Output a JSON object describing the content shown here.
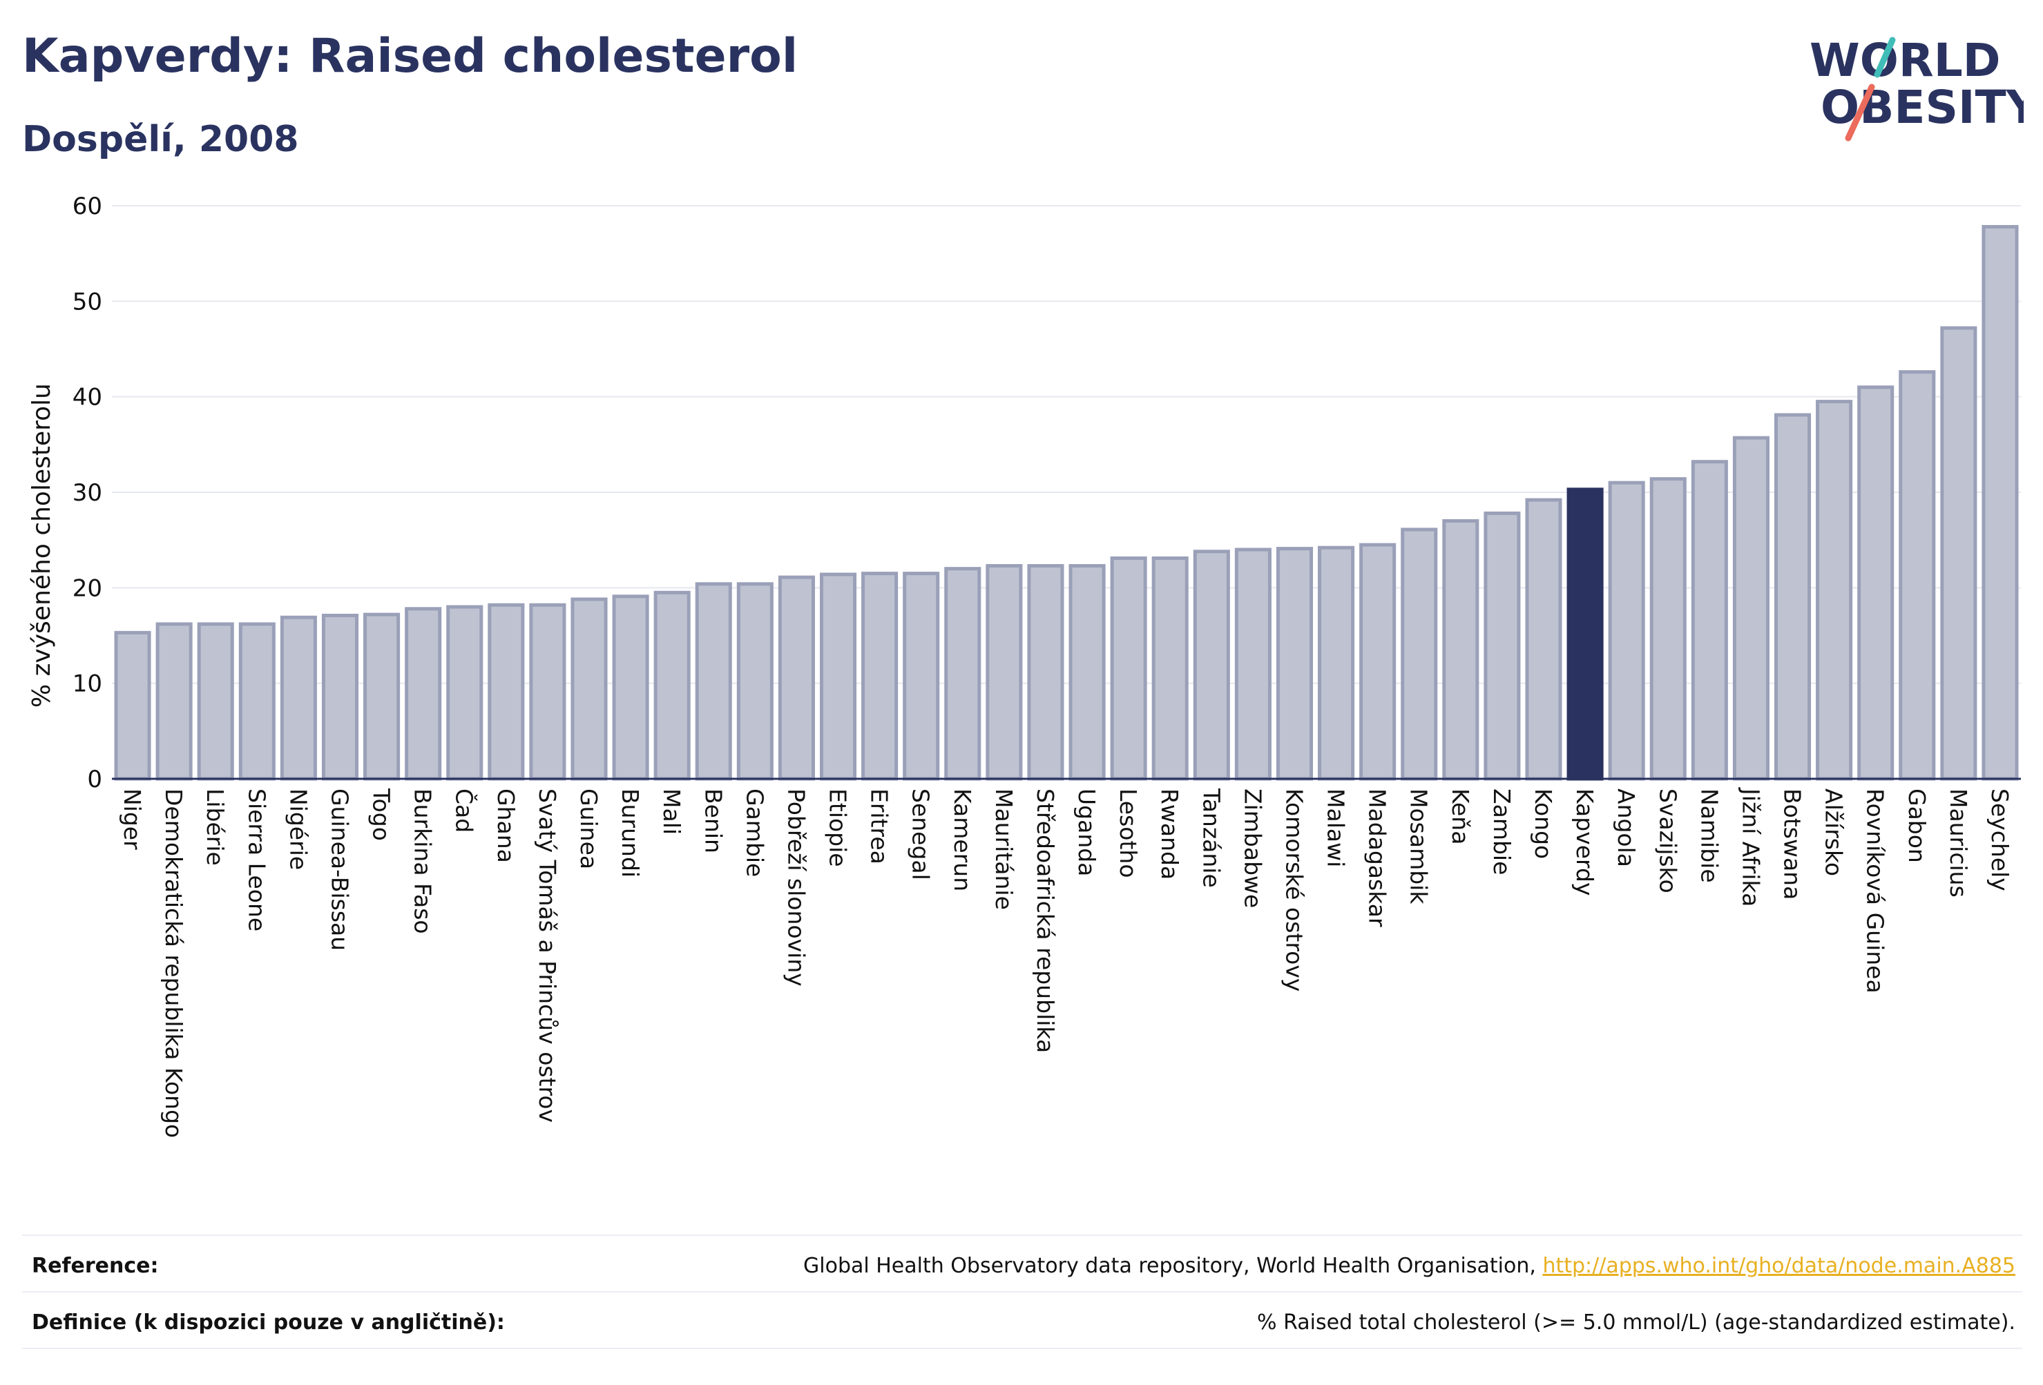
{
  "header": {
    "title": "Kapverdy: Raised cholesterol",
    "subtitle": "Dospělí, 2008"
  },
  "logo": {
    "line1": "WORLD",
    "line2": "OBESITY",
    "slash_colors": [
      "#41bdb8",
      "#ec6b5c"
    ]
  },
  "chart_data": {
    "type": "bar",
    "ylabel": "% zvýšeného cholesterolu",
    "xlabel": "",
    "ylim": [
      0,
      60
    ],
    "yticks": [
      0,
      10,
      20,
      30,
      40,
      50,
      60
    ],
    "grid": true,
    "highlight": "Kapverdy",
    "colors": {
      "bar": "#bfc3d1",
      "bar_stroke": "#9aa0b8",
      "highlight": "#2a3360"
    },
    "categories": [
      "Niger",
      "Demokratická republika Kongo",
      "Libérie",
      "Sierra Leone",
      "Nigérie",
      "Guinea-Bissau",
      "Togo",
      "Burkina Faso",
      "Čad",
      "Ghana",
      "Svatý Tomáš a Princův ostrov",
      "Guinea",
      "Burundi",
      "Mali",
      "Benin",
      "Gambie",
      "Pobřeží slonoviny",
      "Etiopie",
      "Eritrea",
      "Senegal",
      "Kamerun",
      "Mauritánie",
      "Středoafrická republika",
      "Uganda",
      "Lesotho",
      "Rwanda",
      "Tanzánie",
      "Zimbabwe",
      "Komorské ostrovy",
      "Malawi",
      "Madagaskar",
      "Mosambik",
      "Keňa",
      "Zambie",
      "Kongo",
      "Kapverdy",
      "Angola",
      "Svazijsko",
      "Namibie",
      "Jižní Afrika",
      "Botswana",
      "Alžírsko",
      "Rovníková Guinea",
      "Gabon",
      "Mauricius",
      "Seychely"
    ],
    "values": [
      15.3,
      16.2,
      16.2,
      16.2,
      16.9,
      17.1,
      17.2,
      17.8,
      18.0,
      18.2,
      18.2,
      18.8,
      19.1,
      19.5,
      20.4,
      20.4,
      21.1,
      21.4,
      21.5,
      21.5,
      22.0,
      22.3,
      22.3,
      22.3,
      23.1,
      23.1,
      23.8,
      24.0,
      24.1,
      24.2,
      24.5,
      26.1,
      27.0,
      27.8,
      29.2,
      30.3,
      31.0,
      31.4,
      33.2,
      35.7,
      38.1,
      39.5,
      41.0,
      42.6,
      47.2,
      57.8
    ]
  },
  "footer": {
    "reference_label": "Reference:",
    "reference_text": "Global Health Observatory data repository, World Health Organisation, ",
    "reference_link": "http://apps.who.int/gho/data/node.main.A885",
    "definition_label": "Definice (k dispozici pouze v angličtině):",
    "definition_text": "% Raised total cholesterol (>= 5.0 mmol/L) (age-standardized estimate)."
  }
}
